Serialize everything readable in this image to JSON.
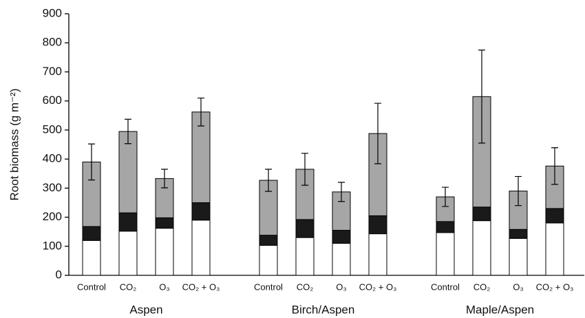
{
  "chart_data": {
    "type": "stacked-bar",
    "y_label": "Root biomass (g m⁻²)",
    "groups": [
      "Aspen",
      "Birch/Aspen",
      "Maple/Aspen"
    ],
    "categories": [
      "Control",
      "CO₂",
      "O₃",
      "CO₂ + O₃",
      "Control",
      "CO₂",
      "O₃",
      "CO₂ + O₃",
      "Control",
      "CO₂",
      "O₃",
      "CO₂ + O₃"
    ],
    "series": [
      {
        "color": "#ffffff",
        "values": [
          120,
          152,
          162,
          190,
          103,
          130,
          110,
          143,
          147,
          188,
          127,
          180
        ]
      },
      {
        "color": "#1a1a1a",
        "values": [
          48,
          63,
          36,
          60,
          35,
          62,
          45,
          62,
          38,
          47,
          31,
          50
        ]
      },
      {
        "color": "#a6a6a6",
        "values": [
          222,
          280,
          135,
          312,
          189,
          173,
          132,
          283,
          85,
          380,
          132,
          146
        ],
        "errors": [
          62,
          42,
          32,
          48,
          38,
          55,
          33,
          104,
          33,
          160,
          50,
          63
        ]
      }
    ],
    "ylim": [
      0,
      900
    ],
    "yticks": [
      0,
      100,
      200,
      300,
      400,
      500,
      600,
      700,
      800,
      900
    ],
    "grid": false
  }
}
